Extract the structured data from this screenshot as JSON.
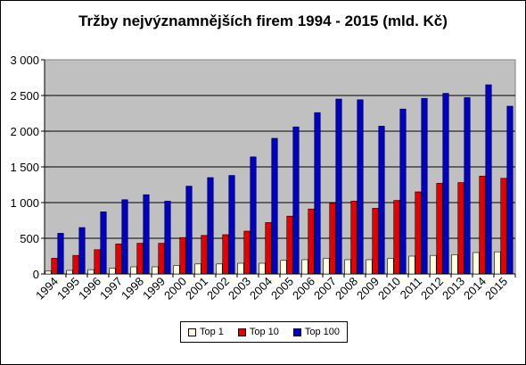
{
  "chart_data": {
    "type": "bar",
    "title": "Tržby nejvýznamnějších firem 1994 - 2015 (mld. Kč)",
    "xlabel": "",
    "ylabel": "",
    "ylim": [
      0,
      3000
    ],
    "yticks": [
      "0",
      "500",
      "1 000",
      "1 500",
      "2 000",
      "2 500",
      "3 000"
    ],
    "categories": [
      "1994",
      "1995",
      "1996",
      "1997",
      "1998",
      "1999",
      "2000",
      "2001",
      "2002",
      "2003",
      "2004",
      "2005",
      "2006",
      "2007",
      "2008",
      "2009",
      "2010",
      "2011",
      "2012",
      "2013",
      "2014",
      "2015"
    ],
    "series": [
      {
        "name": "Top 1",
        "color": "#ffffe0",
        "values": [
          40,
          50,
          60,
          80,
          100,
          100,
          120,
          140,
          140,
          150,
          150,
          190,
          200,
          220,
          200,
          200,
          220,
          250,
          260,
          270,
          300,
          310
        ]
      },
      {
        "name": "Top 10",
        "color": "#e60000",
        "values": [
          220,
          260,
          340,
          420,
          430,
          430,
          510,
          540,
          550,
          600,
          720,
          810,
          910,
          990,
          1020,
          920,
          1030,
          1150,
          1270,
          1280,
          1370,
          1340
        ]
      },
      {
        "name": "Top 100",
        "color": "#0000cc",
        "values": [
          570,
          650,
          870,
          1040,
          1110,
          1020,
          1230,
          1350,
          1380,
          1640,
          1900,
          2060,
          2260,
          2450,
          2440,
          2070,
          2310,
          2460,
          2530,
          2470,
          2650,
          2350
        ]
      }
    ],
    "grid": true,
    "legend_position": "bottom"
  },
  "colors": {
    "plot_background": "#c0c0c0",
    "grid": "#000000"
  }
}
